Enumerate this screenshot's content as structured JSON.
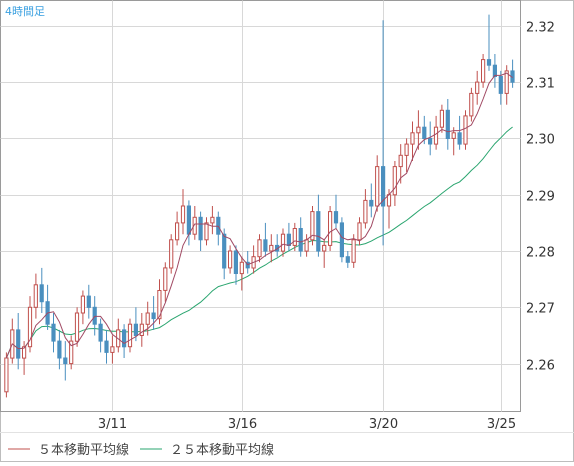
{
  "timeframe_label": "4時間足",
  "legend": [
    {
      "label": "５本移動平均線",
      "color": "#c0504d"
    },
    {
      "label": "２５本移動平均線",
      "color": "#2aa56f"
    }
  ],
  "colors": {
    "bull": "#c0504d",
    "bear": "#4a8fbf",
    "ma5": "#a14a64",
    "ma25": "#2aa56f",
    "grid": "#d8d8d8",
    "axis": "#999999",
    "label_accent": "#3aa0e0"
  },
  "chart_data": {
    "type": "candlestick",
    "title": "4時間足",
    "xlabel": "",
    "ylabel": "",
    "ylim": [
      2.2515,
      2.3245
    ],
    "yticks": [
      2.26,
      2.27,
      2.28,
      2.29,
      2.3,
      2.31,
      2.32
    ],
    "ytick_labels": [
      "2.26",
      "2.27",
      "2.28",
      "2.29",
      "2.30",
      "2.31",
      "2.32"
    ],
    "xtick_labels": [
      {
        "index": 18,
        "label": "3/11"
      },
      {
        "index": 40,
        "label": "3/16"
      },
      {
        "index": 64,
        "label": "3/20"
      },
      {
        "index": 84,
        "label": "3/25"
      }
    ],
    "grid": true,
    "legend_position": "bottom-left",
    "candles": [
      [
        2.255,
        2.262,
        2.254,
        2.261
      ],
      [
        2.261,
        2.268,
        2.26,
        2.266
      ],
      [
        2.266,
        2.269,
        2.259,
        2.261
      ],
      [
        2.261,
        2.264,
        2.258,
        2.263
      ],
      [
        2.263,
        2.272,
        2.262,
        2.27
      ],
      [
        2.27,
        2.276,
        2.268,
        2.274
      ],
      [
        2.274,
        2.277,
        2.269,
        2.271
      ],
      [
        2.271,
        2.274,
        2.266,
        2.267
      ],
      [
        2.267,
        2.269,
        2.262,
        2.264
      ],
      [
        2.264,
        2.266,
        2.259,
        2.261
      ],
      [
        2.261,
        2.264,
        2.257,
        2.26
      ],
      [
        2.26,
        2.265,
        2.259,
        2.264
      ],
      [
        2.264,
        2.27,
        2.263,
        2.269
      ],
      [
        2.269,
        2.273,
        2.267,
        2.272
      ],
      [
        2.272,
        2.274,
        2.268,
        2.27
      ],
      [
        2.27,
        2.272,
        2.265,
        2.267
      ],
      [
        2.267,
        2.268,
        2.262,
        2.264
      ],
      [
        2.264,
        2.266,
        2.26,
        2.262
      ],
      [
        2.262,
        2.265,
        2.26,
        2.263
      ],
      [
        2.263,
        2.268,
        2.262,
        2.266
      ],
      [
        2.266,
        2.267,
        2.261,
        2.263
      ],
      [
        2.263,
        2.268,
        2.262,
        2.267
      ],
      [
        2.267,
        2.27,
        2.264,
        2.265
      ],
      [
        2.265,
        2.269,
        2.263,
        2.267
      ],
      [
        2.267,
        2.271,
        2.265,
        2.269
      ],
      [
        2.269,
        2.272,
        2.266,
        2.268
      ],
      [
        2.268,
        2.275,
        2.267,
        2.273
      ],
      [
        2.273,
        2.278,
        2.271,
        2.277
      ],
      [
        2.277,
        2.283,
        2.276,
        2.282
      ],
      [
        2.282,
        2.287,
        2.281,
        2.285
      ],
      [
        2.285,
        2.291,
        2.283,
        2.288
      ],
      [
        2.288,
        2.289,
        2.281,
        2.283
      ],
      [
        2.283,
        2.288,
        2.282,
        2.286
      ],
      [
        2.286,
        2.287,
        2.28,
        2.282
      ],
      [
        2.282,
        2.286,
        2.281,
        2.285
      ],
      [
        2.285,
        2.288,
        2.283,
        2.286
      ],
      [
        2.286,
        2.287,
        2.281,
        2.283
      ],
      [
        2.283,
        2.284,
        2.275,
        2.277
      ],
      [
        2.277,
        2.281,
        2.276,
        2.28
      ],
      [
        2.28,
        2.281,
        2.274,
        2.276
      ],
      [
        2.276,
        2.279,
        2.273,
        2.278
      ],
      [
        2.278,
        2.28,
        2.276,
        2.277
      ],
      [
        2.277,
        2.281,
        2.276,
        2.279
      ],
      [
        2.279,
        2.283,
        2.278,
        2.282
      ],
      [
        2.282,
        2.285,
        2.279,
        2.28
      ],
      [
        2.28,
        2.283,
        2.278,
        2.281
      ],
      [
        2.281,
        2.283,
        2.279,
        2.28
      ],
      [
        2.28,
        2.284,
        2.279,
        2.283
      ],
      [
        2.283,
        2.285,
        2.28,
        2.281
      ],
      [
        2.281,
        2.285,
        2.28,
        2.284
      ],
      [
        2.284,
        2.286,
        2.279,
        2.28
      ],
      [
        2.28,
        2.283,
        2.279,
        2.282
      ],
      [
        2.282,
        2.288,
        2.281,
        2.287
      ],
      [
        2.287,
        2.29,
        2.279,
        2.28
      ],
      [
        2.28,
        2.282,
        2.277,
        2.281
      ],
      [
        2.281,
        2.288,
        2.28,
        2.287
      ],
      [
        2.287,
        2.29,
        2.284,
        2.285
      ],
      [
        2.285,
        2.286,
        2.278,
        2.279
      ],
      [
        2.279,
        2.28,
        2.277,
        2.278
      ],
      [
        2.278,
        2.283,
        2.277,
        2.282
      ],
      [
        2.282,
        2.286,
        2.281,
        2.285
      ],
      [
        2.285,
        2.291,
        2.284,
        2.289
      ],
      [
        2.289,
        2.292,
        2.286,
        2.288
      ],
      [
        2.288,
        2.297,
        2.287,
        2.295
      ],
      [
        2.295,
        2.321,
        2.281,
        2.288
      ],
      [
        2.288,
        2.291,
        2.284,
        2.29
      ],
      [
        2.29,
        2.296,
        2.288,
        2.295
      ],
      [
        2.295,
        2.299,
        2.292,
        2.297
      ],
      [
        2.297,
        2.3,
        2.294,
        2.299
      ],
      [
        2.299,
        2.303,
        2.296,
        2.301
      ],
      [
        2.301,
        2.305,
        2.298,
        2.302
      ],
      [
        2.302,
        2.304,
        2.299,
        2.3
      ],
      [
        2.3,
        2.303,
        2.297,
        2.299
      ],
      [
        2.299,
        2.304,
        2.298,
        2.302
      ],
      [
        2.302,
        2.306,
        2.301,
        2.305
      ],
      [
        2.305,
        2.307,
        2.298,
        2.3
      ],
      [
        2.3,
        2.302,
        2.297,
        2.301
      ],
      [
        2.301,
        2.304,
        2.298,
        2.299
      ],
      [
        2.299,
        2.305,
        2.298,
        2.304
      ],
      [
        2.304,
        2.309,
        2.303,
        2.308
      ],
      [
        2.308,
        2.312,
        2.306,
        2.31
      ],
      [
        2.31,
        2.315,
        2.309,
        2.314
      ],
      [
        2.314,
        2.322,
        2.312,
        2.313
      ],
      [
        2.313,
        2.315,
        2.309,
        2.311
      ],
      [
        2.311,
        2.312,
        2.306,
        2.308
      ],
      [
        2.308,
        2.313,
        2.306,
        2.312
      ],
      [
        2.312,
        2.314,
        2.309,
        2.31
      ]
    ]
  }
}
